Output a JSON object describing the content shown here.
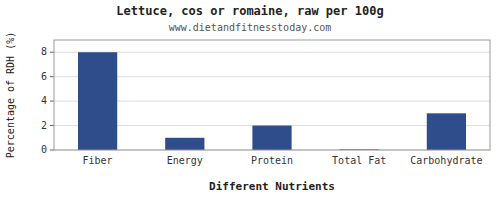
{
  "chart_data": {
    "type": "bar",
    "title": "Lettuce, cos or romaine, raw per 100g",
    "subtitle": "www.dietandfitnesstoday.com",
    "xlabel": "Different Nutrients",
    "ylabel": "Percentage of RDH (%)",
    "categories": [
      "Fiber",
      "Energy",
      "Protein",
      "Total Fat",
      "Carbohydrate"
    ],
    "values": [
      8.0,
      1.0,
      2.0,
      0.05,
      3.0
    ],
    "color": "#2e4d8a",
    "ylim": [
      0,
      9
    ],
    "yticks": [
      0,
      2,
      4,
      6,
      8
    ],
    "grid": true
  }
}
